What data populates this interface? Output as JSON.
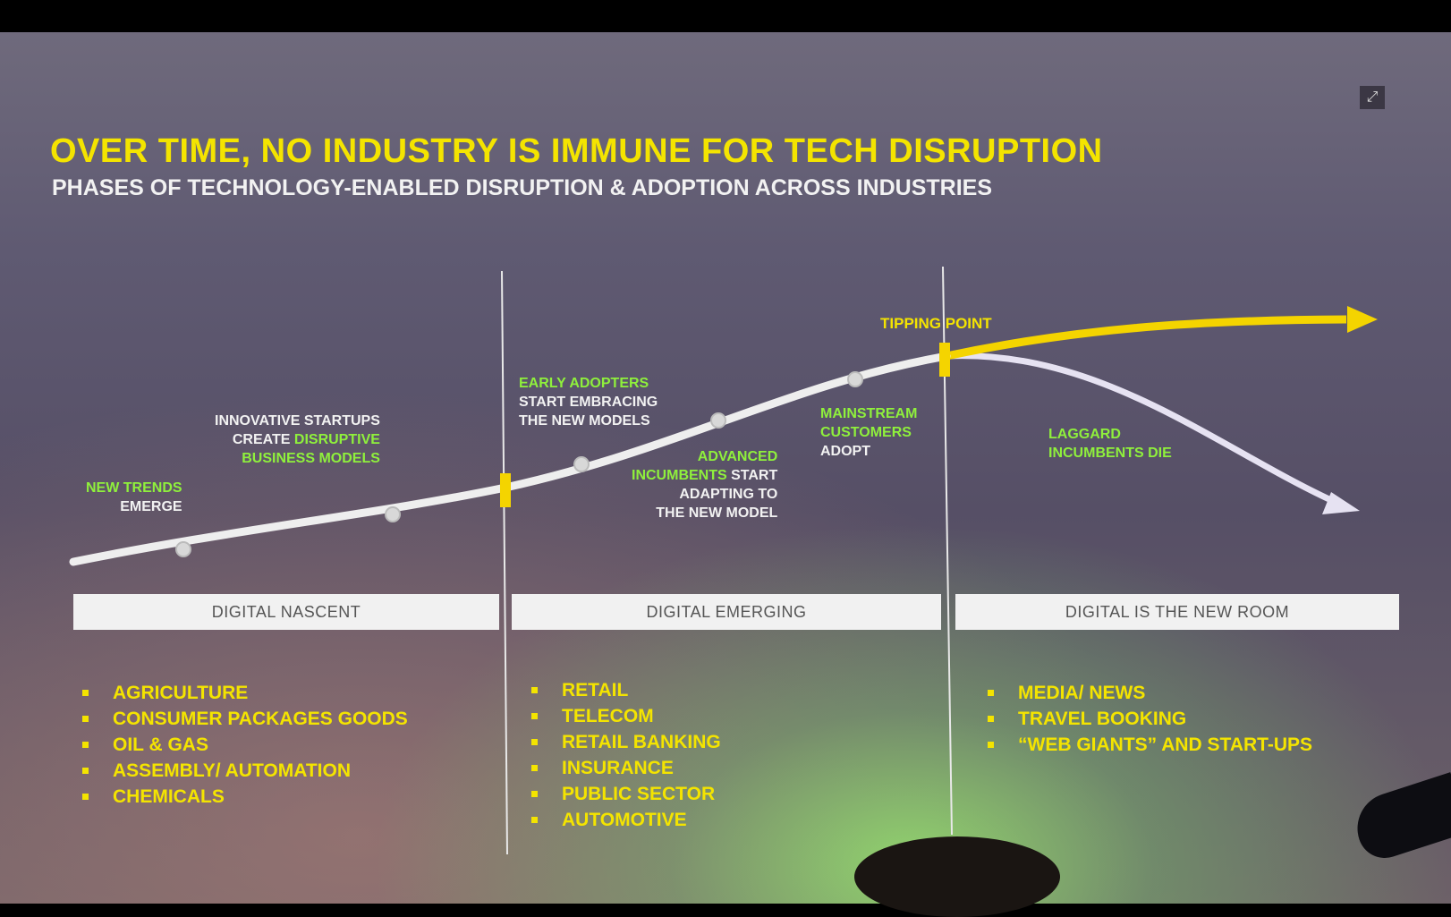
{
  "slide": {
    "title": "OVER TIME, NO INDUSTRY IS IMMUNE FOR TECH DISRUPTION",
    "subtitle": "PHASES OF TECHNOLOGY-ENABLED DISRUPTION & ADOPTION ACROSS INDUSTRIES"
  },
  "icons": {
    "expand": "expand-icon"
  },
  "labels": {
    "new_trends": {
      "line1": "NEW TRENDS",
      "line2": "EMERGE"
    },
    "startups": {
      "line1": "INNOVATIVE STARTUPS",
      "line2a": "CREATE ",
      "line2b": "DISRUPTIVE",
      "line3": "BUSINESS MODELS"
    },
    "early_adopters": {
      "line1": "EARLY ADOPTERS",
      "line2": "START EMBRACING",
      "line3": "THE NEW MODELS"
    },
    "advanced": {
      "line1": "ADVANCED",
      "line2a": "INCUMBENTS",
      "line2b": " START",
      "line3": "ADAPTING TO",
      "line4": "THE NEW MODEL"
    },
    "mainstream": {
      "line1": "MAINSTREAM",
      "line2": "CUSTOMERS",
      "line3": "ADOPT"
    },
    "tipping_point": "TIPPING POINT",
    "laggard": {
      "line1": "LAGGARD",
      "line2": "INCUMBENTS DIE"
    }
  },
  "phases": [
    {
      "name": "DIGITAL NASCENT",
      "industries": [
        "AGRICULTURE",
        "CONSUMER PACKAGES GOODS",
        "OIL & GAS",
        "ASSEMBLY/ AUTOMATION",
        "CHEMICALS"
      ]
    },
    {
      "name": "DIGITAL EMERGING",
      "industries": [
        "RETAIL",
        "TELECOM",
        "RETAIL BANKING",
        "INSURANCE",
        "PUBLIC SECTOR",
        "AUTOMOTIVE"
      ]
    },
    {
      "name": "DIGITAL IS THE NEW ROOM",
      "industries": [
        "MEDIA/ NEWS",
        "TRAVEL BOOKING",
        "“WEB GIANTS” AND START-UPS"
      ]
    }
  ],
  "colors": {
    "title": "#f4e400",
    "highlight_green": "#8ff03c",
    "curve": "#eeeeee",
    "winner_arrow": "#f4d400",
    "loser_arrow": "#e6e2f2",
    "marker": "#f4d400"
  }
}
